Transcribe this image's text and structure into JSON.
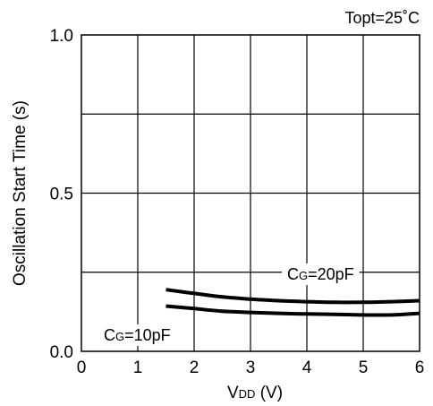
{
  "chart_data": {
    "type": "line",
    "annotation": "Topt=25˚C",
    "xlabel": {
      "main": "V",
      "sub": "DD",
      "unit": " (V)"
    },
    "ylabel": "Oscillation Start Time (s)",
    "xlim": [
      0,
      6
    ],
    "ylim": [
      0,
      1.0
    ],
    "x_ticks": [
      "0",
      "1",
      "2",
      "3",
      "4",
      "5",
      "6"
    ],
    "y_ticks": [
      {
        "value": 0.0,
        "label": "0.0"
      },
      {
        "value": 0.5,
        "label": "0.5"
      },
      {
        "value": 1.0,
        "label": "1.0"
      }
    ],
    "gridlines_x": [
      1,
      2,
      3,
      4,
      5
    ],
    "gridlines_y": [
      0.25,
      0.5,
      0.75
    ],
    "grid": true,
    "series": [
      {
        "name": {
          "main": "C",
          "sub": "G",
          "rest": "=20pF"
        },
        "x": [
          1.5,
          2.0,
          2.5,
          3.0,
          3.5,
          4.0,
          4.5,
          5.0,
          5.5,
          6.0
        ],
        "y": [
          0.195,
          0.183,
          0.172,
          0.165,
          0.16,
          0.157,
          0.155,
          0.155,
          0.157,
          0.16
        ]
      },
      {
        "name": {
          "main": "C",
          "sub": "G",
          "rest": "=10pF"
        },
        "x": [
          1.5,
          2.0,
          2.5,
          3.0,
          3.5,
          4.0,
          4.5,
          5.0,
          5.5,
          6.0
        ],
        "y": [
          0.143,
          0.135,
          0.127,
          0.123,
          0.12,
          0.118,
          0.117,
          0.115,
          0.115,
          0.12
        ]
      }
    ]
  }
}
